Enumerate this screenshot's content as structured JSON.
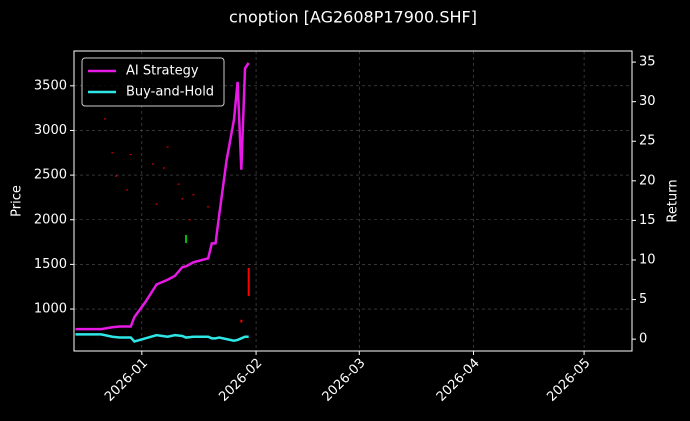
{
  "chart_data": {
    "type": "candlestick-returns",
    "title": "cnoption [AG2608P17900.SHF]",
    "y_label": "Price",
    "y2_label": "Return",
    "xlim": [
      -18.4,
      133
    ],
    "xticks": [
      {
        "value": 0,
        "label": "2026-01"
      },
      {
        "value": 31,
        "label": "2026-02"
      },
      {
        "value": 59,
        "label": "2026-03"
      },
      {
        "value": 90,
        "label": "2026-04"
      },
      {
        "value": 120,
        "label": "2026-05"
      }
    ],
    "ylim": [
      530,
      3890
    ],
    "yticks": [
      1000,
      1500,
      2000,
      2500,
      3000,
      3500
    ],
    "y2lim": [
      -1.5,
      36.4
    ],
    "y2ticks": [
      0,
      5,
      10,
      15,
      20,
      25,
      30,
      35
    ],
    "grid": true,
    "legend": "upper left",
    "candles": {
      "x": [
        -10,
        -8,
        -7,
        -4,
        -3,
        3,
        4,
        6,
        7,
        10,
        11,
        12,
        13,
        14,
        18,
        27,
        29
      ],
      "open": [
        3135,
        2755,
        2495,
        2340,
        2735,
        2630,
        2180,
        2585,
        2820,
        2405,
        2240,
        1740,
        2005,
        2285,
        2150,
        880,
        1460
      ],
      "close": [
        3125,
        2745,
        2485,
        2330,
        2725,
        2620,
        2170,
        2575,
        2810,
        2395,
        2230,
        1830,
        1995,
        2275,
        2140,
        850,
        1145
      ],
      "up_color": "#00c000",
      "down_color": "#ff0000"
    },
    "x": [
      -18,
      -11,
      -8,
      -6,
      -3,
      -2,
      1,
      4,
      7,
      9,
      11,
      12,
      14,
      18,
      19,
      20,
      21,
      23,
      25,
      26,
      27,
      28,
      29
    ],
    "series": [
      {
        "name": "AI Strategy",
        "color": "#e619e6",
        "axis": "y2",
        "values": [
          1.26,
          1.26,
          1.5,
          1.6,
          1.6,
          2.8,
          4.7,
          6.9,
          7.5,
          8.0,
          9.1,
          9.2,
          9.7,
          10.2,
          12.1,
          12.1,
          15.7,
          22.6,
          27.7,
          32.5,
          21.4,
          34.2,
          34.9
        ]
      },
      {
        "name": "Buy-and-Hold",
        "color": "#2ee6e6",
        "axis": "y2",
        "values": [
          0.6,
          0.6,
          0.3,
          0.2,
          0.2,
          -0.3,
          0.1,
          0.5,
          0.3,
          0.5,
          0.4,
          0.2,
          0.3,
          0.3,
          0.1,
          0.1,
          0.2,
          0.0,
          -0.2,
          -0.1,
          0.1,
          0.3,
          0.3
        ]
      }
    ]
  }
}
